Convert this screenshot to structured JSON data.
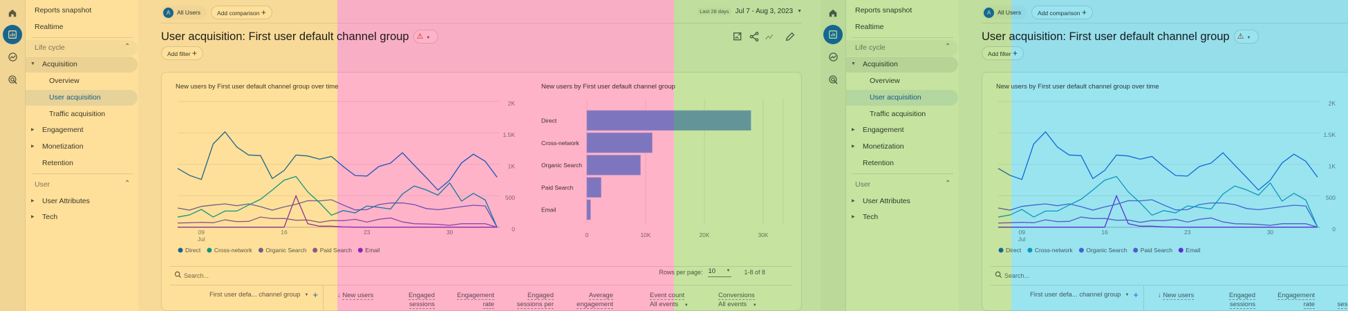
{
  "rail": {
    "icons": [
      "home-icon",
      "reports-icon",
      "explore-icon",
      "advertising-icon"
    ]
  },
  "sidebar": {
    "reports_snapshot": "Reports snapshot",
    "realtime": "Realtime",
    "lifecycle": {
      "label": "Life cycle",
      "items": {
        "acquisition": {
          "label": "Acquisition",
          "children": [
            "Overview",
            "User acquisition",
            "Traffic acquisition"
          ]
        },
        "engagement": "Engagement",
        "monetization": "Monetization",
        "retention": "Retention"
      }
    },
    "user": {
      "label": "User",
      "items": [
        "User Attributes",
        "Tech"
      ]
    }
  },
  "header": {
    "segment_avatar": "A",
    "segment": "All Users",
    "add_comparison": "Add comparison",
    "date_range_label": "Last 28 days",
    "date_range": "Jul 7 - Aug 3, 2023",
    "title": "User acquisition: First user default channel group",
    "add_filter": "Add filter"
  },
  "colors": {
    "accent": "#1a73e8",
    "warning": "#d93025",
    "bar": "#7ea6f3"
  },
  "chart_data": [
    {
      "type": "line",
      "title": "New users by First user default channel group over time",
      "x": [
        "2023-07-07",
        "2023-07-08",
        "2023-07-09",
        "2023-07-10",
        "2023-07-11",
        "2023-07-12",
        "2023-07-13",
        "2023-07-14",
        "2023-07-15",
        "2023-07-16",
        "2023-07-17",
        "2023-07-18",
        "2023-07-19",
        "2023-07-20",
        "2023-07-21",
        "2023-07-22",
        "2023-07-23",
        "2023-07-24",
        "2023-07-25",
        "2023-07-26",
        "2023-07-27",
        "2023-07-28",
        "2023-07-29",
        "2023-07-30",
        "2023-07-31",
        "2023-08-01",
        "2023-08-02",
        "2023-08-03"
      ],
      "x_ticks": [
        {
          "label": "09",
          "sublabel": "Jul",
          "index": 2
        },
        {
          "label": "16",
          "index": 9
        },
        {
          "label": "23",
          "index": 16
        },
        {
          "label": "30",
          "index": 23
        }
      ],
      "y_ticks": [
        "0",
        "500",
        "1K",
        "1.5K",
        "2K"
      ],
      "ylim": [
        0,
        2000
      ],
      "y_axis_side": "right",
      "grid": true,
      "legend_placement": "bottom-left",
      "series": [
        {
          "name": "Direct",
          "color": "#1a73e8",
          "values": [
            934,
            824,
            758,
            1322,
            1516,
            1275,
            1147,
            1139,
            773,
            901,
            1147,
            1132,
            1081,
            1125,
            964,
            821,
            813,
            964,
            1019,
            1183,
            985,
            791,
            590,
            747,
            1022,
            1161,
            1048,
            795
          ]
        },
        {
          "name": "Cross-network",
          "color": "#12a9cb",
          "values": [
            161,
            194,
            282,
            161,
            256,
            256,
            352,
            443,
            590,
            747,
            806,
            560,
            388,
            190,
            264,
            227,
            337,
            315,
            289,
            527,
            655,
            593,
            509,
            703,
            414,
            538,
            432,
            0
          ]
        },
        {
          "name": "Organic Search",
          "color": "#6b6fe0",
          "values": [
            304,
            271,
            330,
            352,
            370,
            341,
            370,
            326,
            271,
            322,
            363,
            421,
            418,
            436,
            352,
            275,
            278,
            359,
            385,
            385,
            359,
            297,
            278,
            300,
            326,
            348,
            337,
            0
          ]
        },
        {
          "name": "Paid Search",
          "color": "#8a68d6",
          "values": [
            66,
            70,
            77,
            70,
            117,
            88,
            92,
            161,
            136,
            139,
            110,
            114,
            77,
            106,
            103,
            125,
            81,
            125,
            147,
            84,
            55,
            51,
            44,
            29,
            55,
            55,
            55,
            0
          ]
        },
        {
          "name": "Email",
          "color": "#9334e6",
          "values": [
            0,
            0,
            0,
            0,
            0,
            0,
            0,
            0,
            0,
            0,
            498,
            55,
            15,
            15,
            5,
            0,
            0,
            0,
            0,
            0,
            0,
            0,
            0,
            0,
            0,
            0,
            0,
            0
          ]
        }
      ]
    },
    {
      "type": "bar",
      "orientation": "horizontal",
      "title": "New users by First user default channel group",
      "categories": [
        "Direct",
        "Cross-network",
        "Organic Search",
        "Paid Search",
        "Email"
      ],
      "values": [
        27900,
        11100,
        9100,
        2400,
        600
      ],
      "x_ticks": [
        "0",
        "10K",
        "20K",
        "30K"
      ],
      "xlim": [
        0,
        30000
      ],
      "grid": true
    }
  ],
  "table": {
    "search_placeholder": "Search...",
    "rows_per_page_label": "Rows per page:",
    "rows_per_page": "10",
    "pagination": "1-8 of 8",
    "dimension": "First user defa... channel group",
    "columns": [
      {
        "l1": "New users",
        "l2": ""
      },
      {
        "l1": "Engaged",
        "l2": "sessions"
      },
      {
        "l1": "Engagement",
        "l2": "rate"
      },
      {
        "l1": "Engaged",
        "l2": "sessions per"
      },
      {
        "l1": "Average",
        "l2": "engagement"
      },
      {
        "l1": "Event count",
        "l2": "All events"
      },
      {
        "l1": "Conversions",
        "l2": "All events"
      }
    ]
  },
  "overlays": [
    "#fee09b",
    "#ffb3c9",
    "#c6e4a0",
    "#9ae4ef"
  ]
}
